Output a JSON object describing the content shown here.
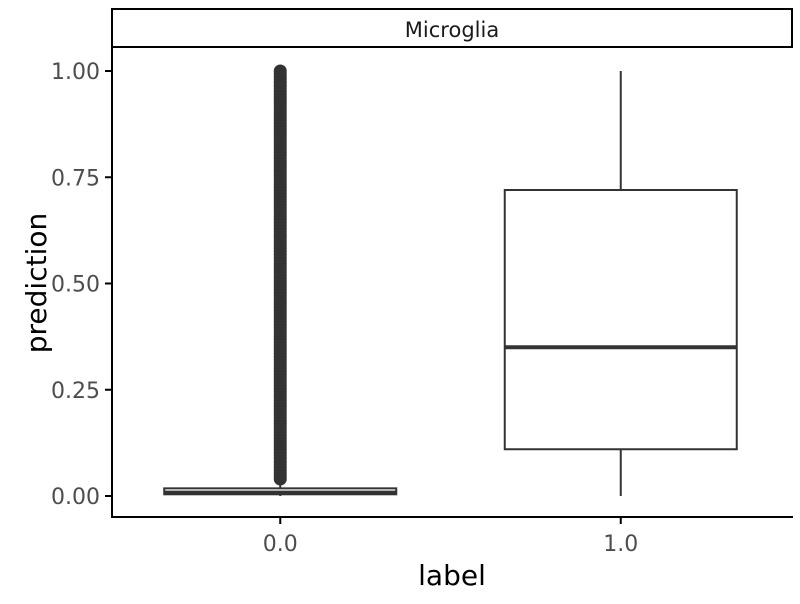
{
  "chart_data": {
    "type": "boxplot",
    "facet_label": "Microglia",
    "xlabel": "label",
    "ylabel": "prediction",
    "categories": [
      "0.0",
      "1.0"
    ],
    "yticks": [
      "0.00",
      "0.25",
      "0.50",
      "0.75",
      "1.00"
    ],
    "ytick_values": [
      0.0,
      0.25,
      0.5,
      0.75,
      1.0
    ],
    "ylim": [
      -0.05,
      1.05
    ],
    "boxes": [
      {
        "category": "0.0",
        "min": 0.0,
        "q1": 0.004,
        "median": 0.008,
        "q3": 0.018,
        "max": 0.04,
        "outliers_range": [
          0.04,
          1.0
        ]
      },
      {
        "category": "1.0",
        "min": 0.0,
        "q1": 0.11,
        "median": 0.35,
        "q3": 0.72,
        "max": 1.0,
        "outliers_range": null
      }
    ],
    "grid": false,
    "colors": {
      "box_line": "#333333",
      "box_fill": "#ffffff",
      "outlier": "#333333",
      "axis": "#000000",
      "tick_label": "#4d4d4d",
      "title_text": "#1a1a1a"
    }
  }
}
